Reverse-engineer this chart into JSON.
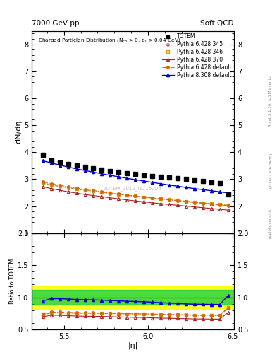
{
  "title_left": "7000 GeV pp",
  "title_right": "Soft QCD",
  "plot_title": "Charged Particleη Distribution (N_{ch} > 0, p_{T} > 0.04 GeV)",
  "ylabel_main": "dN/dη",
  "ylabel_ratio": "Ratio to TOTEM",
  "xlabel": "|η|",
  "watermark": "TOTEM_2012_I1115294",
  "rivet_label": "Rivet 3.1.10, ≥ 2M events",
  "arxiv_label": "[arXiv:1306.3436]",
  "mcplots_label": "mcplots.cern.ch",
  "eta_totem": [
    5.375,
    5.425,
    5.475,
    5.525,
    5.575,
    5.625,
    5.675,
    5.725,
    5.775,
    5.825,
    5.875,
    5.925,
    5.975,
    6.025,
    6.075,
    6.125,
    6.175,
    6.225,
    6.275,
    6.325,
    6.375,
    6.425,
    6.475
  ],
  "dndeta_totem": [
    3.9,
    3.68,
    3.6,
    3.55,
    3.5,
    3.45,
    3.4,
    3.35,
    3.31,
    3.27,
    3.23,
    3.19,
    3.15,
    3.12,
    3.09,
    3.06,
    3.03,
    3.0,
    2.97,
    2.93,
    2.89,
    2.85,
    2.42
  ],
  "eta_py345": [
    5.375,
    5.425,
    5.475,
    5.525,
    5.575,
    5.625,
    5.675,
    5.725,
    5.775,
    5.825,
    5.875,
    5.925,
    5.975,
    6.025,
    6.075,
    6.125,
    6.175,
    6.225,
    6.275,
    6.325,
    6.375,
    6.425,
    6.475
  ],
  "dndeta_py345": [
    2.85,
    2.78,
    2.73,
    2.68,
    2.63,
    2.59,
    2.55,
    2.51,
    2.47,
    2.44,
    2.4,
    2.37,
    2.34,
    2.3,
    2.27,
    2.24,
    2.21,
    2.18,
    2.15,
    2.12,
    2.09,
    2.06,
    2.03
  ],
  "eta_py346": [
    5.375,
    5.425,
    5.475,
    5.525,
    5.575,
    5.625,
    5.675,
    5.725,
    5.775,
    5.825,
    5.875,
    5.925,
    5.975,
    6.025,
    6.075,
    6.125,
    6.175,
    6.225,
    6.275,
    6.325,
    6.375,
    6.425,
    6.475
  ],
  "dndeta_py346": [
    2.88,
    2.8,
    2.74,
    2.69,
    2.65,
    2.6,
    2.56,
    2.52,
    2.48,
    2.44,
    2.4,
    2.37,
    2.33,
    2.3,
    2.27,
    2.24,
    2.21,
    2.18,
    2.15,
    2.12,
    2.09,
    2.06,
    2.03
  ],
  "eta_py370": [
    5.375,
    5.425,
    5.475,
    5.525,
    5.575,
    5.625,
    5.675,
    5.725,
    5.775,
    5.825,
    5.875,
    5.925,
    5.975,
    6.025,
    6.075,
    6.125,
    6.175,
    6.225,
    6.275,
    6.325,
    6.375,
    6.425,
    6.475
  ],
  "dndeta_py370": [
    2.72,
    2.65,
    2.59,
    2.53,
    2.48,
    2.43,
    2.39,
    2.35,
    2.31,
    2.27,
    2.23,
    2.19,
    2.16,
    2.12,
    2.09,
    2.06,
    2.03,
    2.0,
    1.97,
    1.94,
    1.91,
    1.88,
    1.85
  ],
  "eta_pydef": [
    5.375,
    5.425,
    5.475,
    5.525,
    5.575,
    5.625,
    5.675,
    5.725,
    5.775,
    5.825,
    5.875,
    5.925,
    5.975,
    6.025,
    6.075,
    6.125,
    6.175,
    6.225,
    6.275,
    6.325,
    6.375,
    6.425,
    6.475
  ],
  "dndeta_pydef": [
    2.9,
    2.83,
    2.77,
    2.72,
    2.67,
    2.62,
    2.58,
    2.53,
    2.49,
    2.45,
    2.41,
    2.37,
    2.34,
    2.3,
    2.27,
    2.23,
    2.2,
    2.17,
    2.13,
    2.1,
    2.07,
    2.04,
    2.01
  ],
  "eta_py8": [
    5.375,
    5.425,
    5.475,
    5.525,
    5.575,
    5.625,
    5.675,
    5.725,
    5.775,
    5.825,
    5.875,
    5.925,
    5.975,
    6.025,
    6.075,
    6.125,
    6.175,
    6.225,
    6.275,
    6.325,
    6.375,
    6.425,
    6.475
  ],
  "dndeta_py8": [
    3.68,
    3.6,
    3.52,
    3.45,
    3.38,
    3.32,
    3.26,
    3.2,
    3.14,
    3.09,
    3.03,
    2.98,
    2.93,
    2.88,
    2.83,
    2.78,
    2.74,
    2.69,
    2.65,
    2.61,
    2.57,
    2.53,
    2.49
  ],
  "color_totem": "#000000",
  "color_py345": "#cc6677",
  "color_py346": "#cc9900",
  "color_py370": "#aa2222",
  "color_pydef": "#dd6600",
  "color_py8": "#0000cc",
  "band_yellow": [
    0.82,
    1.18
  ],
  "band_green": [
    0.88,
    1.12
  ],
  "ylim_main": [
    1.0,
    8.5
  ],
  "ylim_ratio": [
    0.5,
    2.0
  ],
  "xlim": [
    5.31,
    6.51
  ],
  "xticks": [
    5.5,
    6.0,
    6.5
  ],
  "yticks_main": [
    1,
    2,
    3,
    4,
    5,
    6,
    7,
    8
  ],
  "yticks_ratio": [
    0.5,
    1.0,
    1.5,
    2.0
  ]
}
